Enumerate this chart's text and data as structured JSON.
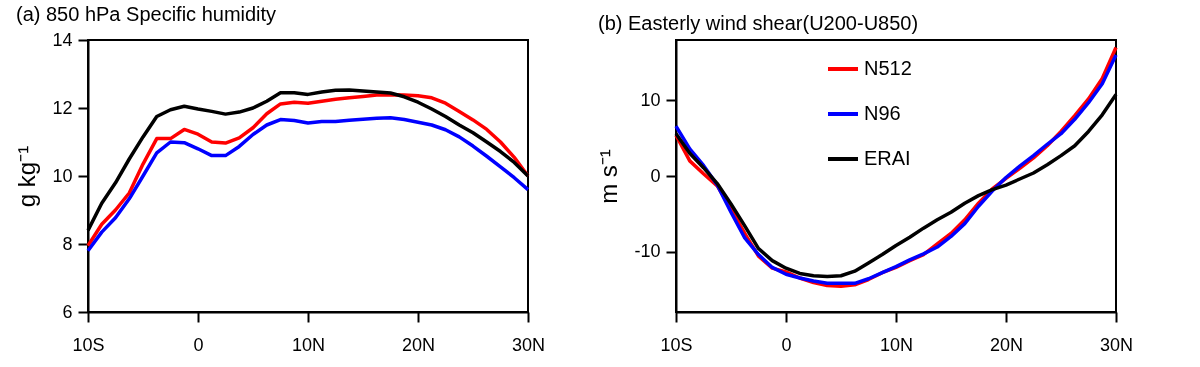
{
  "chart_data": [
    {
      "type": "line",
      "title": "(a) 850 hPa Specific humidity",
      "ylabel": "g kg⁻¹",
      "x": [
        -10,
        -8.75,
        -7.5,
        -6.25,
        -5,
        -3.75,
        -2.5,
        -1.25,
        0,
        1.25,
        2.5,
        3.75,
        5,
        6.25,
        7.5,
        8.75,
        10,
        11.25,
        12.5,
        13.75,
        15,
        16.25,
        17.5,
        18.75,
        20,
        21.25,
        22.5,
        23.75,
        25,
        26.25,
        27.5,
        28.75,
        30
      ],
      "xlim": [
        -10,
        30
      ],
      "xticks": [
        {
          "value": -10,
          "label": "10S"
        },
        0,
        {
          "value": 10,
          "label": "10N"
        },
        {
          "value": 20,
          "label": "20N"
        },
        {
          "value": 30,
          "label": "30N"
        }
      ],
      "ylim": [
        6,
        14
      ],
      "yticks": [
        6,
        8,
        10,
        12,
        14
      ],
      "grid": false,
      "legend": false,
      "series": [
        {
          "color": "#ff0000",
          "values": [
            7.95,
            8.58,
            9.0,
            9.5,
            10.35,
            11.1,
            11.1,
            11.37,
            11.23,
            11.0,
            10.97,
            11.12,
            11.42,
            11.83,
            12.12,
            12.17,
            12.14,
            12.2,
            12.26,
            12.3,
            12.34,
            12.38,
            12.39,
            12.38,
            12.36,
            12.3,
            12.14,
            11.9,
            11.65,
            11.37,
            11.0,
            10.55,
            10.0
          ]
        },
        {
          "color": "#0000ff",
          "values": [
            7.8,
            8.35,
            8.77,
            9.33,
            10.0,
            10.68,
            11.0,
            10.98,
            10.8,
            10.6,
            10.6,
            10.87,
            11.22,
            11.5,
            11.66,
            11.63,
            11.56,
            11.6,
            11.6,
            11.64,
            11.67,
            11.7,
            11.71,
            11.66,
            11.58,
            11.5,
            11.36,
            11.15,
            10.88,
            10.58,
            10.27,
            9.95,
            9.6
          ]
        },
        {
          "color": "#000000",
          "values": [
            8.4,
            9.2,
            9.8,
            10.5,
            11.15,
            11.75,
            11.95,
            12.05,
            11.97,
            11.9,
            11.82,
            11.88,
            12.0,
            12.2,
            12.45,
            12.45,
            12.4,
            12.47,
            12.52,
            12.53,
            12.5,
            12.47,
            12.44,
            12.33,
            12.17,
            11.97,
            11.75,
            11.5,
            11.27,
            11.0,
            10.72,
            10.4,
            10.0
          ]
        }
      ]
    },
    {
      "type": "line",
      "title": "(b) Easterly wind shear(U200-U850)",
      "ylabel": "m s⁻¹",
      "x": [
        -10,
        -8.75,
        -7.5,
        -6.25,
        -5,
        -3.75,
        -2.5,
        -1.25,
        0,
        1.25,
        2.5,
        3.75,
        5,
        6.25,
        7.5,
        8.75,
        10,
        11.25,
        12.5,
        13.75,
        15,
        16.25,
        17.5,
        18.75,
        20,
        21.25,
        22.5,
        23.75,
        25,
        26.25,
        27.5,
        28.75,
        30
      ],
      "xlim": [
        -10,
        30
      ],
      "xticks": [
        {
          "value": -10,
          "label": "10S"
        },
        0,
        {
          "value": 10,
          "label": "10N"
        },
        {
          "value": 20,
          "label": "20N"
        },
        {
          "value": 30,
          "label": "30N"
        }
      ],
      "ylim": [
        -18,
        18
      ],
      "yticks": [
        -10,
        0,
        10
      ],
      "grid": false,
      "legend": "top",
      "series": [
        {
          "name": "N512",
          "color": "#ff0000",
          "values": [
            5.4,
            2.0,
            0.3,
            -1.3,
            -4.3,
            -7.6,
            -10.6,
            -12.2,
            -12.7,
            -13.5,
            -14.1,
            -14.5,
            -14.6,
            -14.4,
            -13.7,
            -12.8,
            -12.1,
            -11.2,
            -10.4,
            -9.0,
            -7.6,
            -5.8,
            -3.6,
            -1.7,
            -0.3,
            1.0,
            2.4,
            4.0,
            5.9,
            8.0,
            10.2,
            12.9,
            17.0
          ]
        },
        {
          "name": "N96",
          "color": "#0000ff",
          "values": [
            6.6,
            3.6,
            1.4,
            -1.2,
            -4.8,
            -8.2,
            -10.4,
            -12.1,
            -13.0,
            -13.5,
            -13.9,
            -14.2,
            -14.2,
            -14.2,
            -13.6,
            -12.8,
            -12.0,
            -11.1,
            -10.3,
            -9.4,
            -8.0,
            -6.3,
            -4.0,
            -2.0,
            -0.2,
            1.3,
            2.7,
            4.2,
            5.6,
            7.5,
            9.7,
            12.2,
            16.0
          ]
        },
        {
          "name": "ERAI",
          "color": "#000000",
          "values": [
            5.6,
            3.0,
            1.1,
            -1.0,
            -3.7,
            -6.6,
            -9.6,
            -11.2,
            -12.2,
            -12.9,
            -13.2,
            -13.3,
            -13.2,
            -12.6,
            -11.5,
            -10.4,
            -9.2,
            -8.1,
            -6.9,
            -5.8,
            -4.8,
            -3.6,
            -2.6,
            -1.8,
            -1.2,
            -0.4,
            0.4,
            1.5,
            2.7,
            4.0,
            5.9,
            8.1,
            10.8
          ]
        }
      ]
    }
  ]
}
